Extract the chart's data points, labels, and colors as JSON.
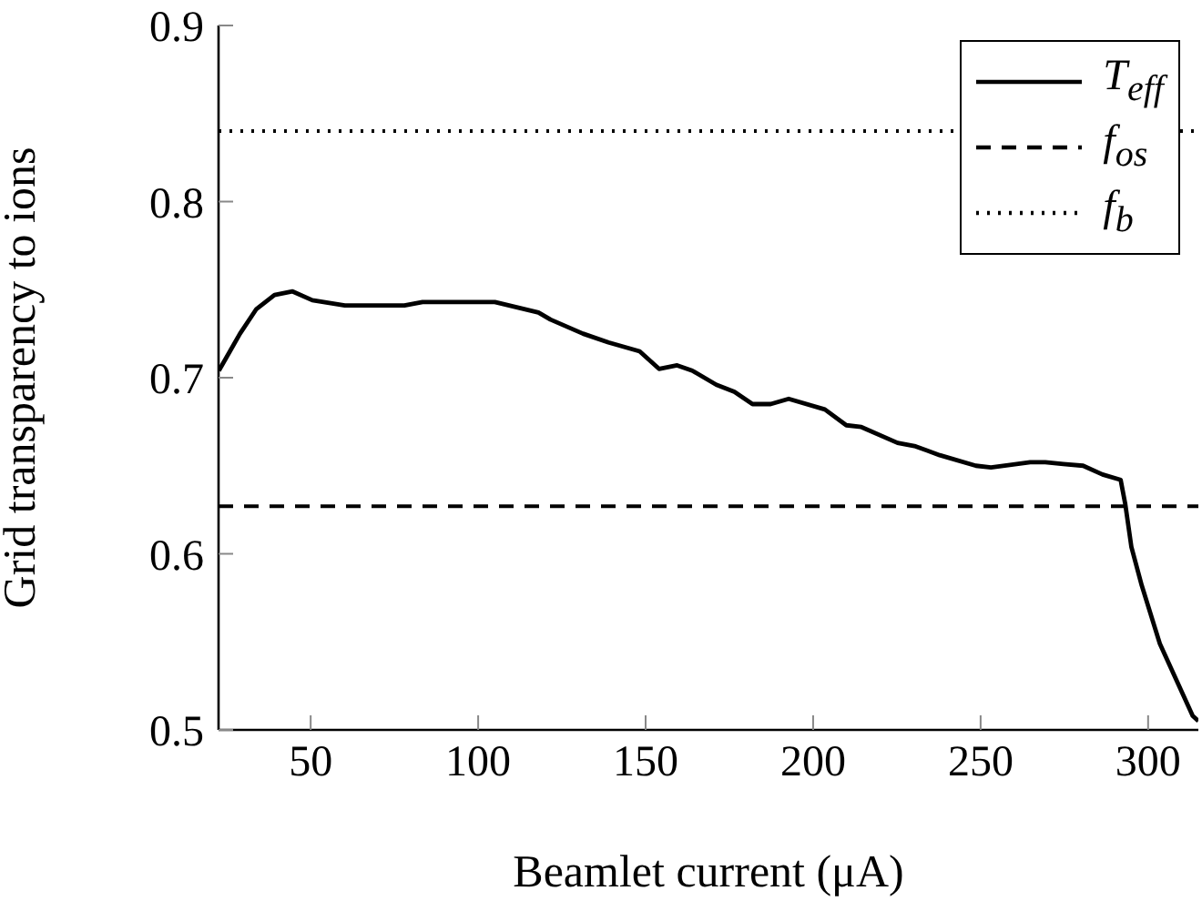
{
  "chart_data": {
    "type": "line",
    "xlabel": "Beamlet current (μA)",
    "ylabel": "Grid transparency to ions",
    "xlim": [
      22.5,
      315
    ],
    "xticks": [
      50,
      100,
      150,
      200,
      250,
      300
    ],
    "ylim": [
      0.5,
      0.9
    ],
    "yticks": [
      0.5,
      0.6,
      0.7,
      0.8,
      0.9
    ],
    "grid": false,
    "legend": "top right",
    "marker": "none",
    "series": [
      {
        "name": "T$_{eff}$",
        "color": "#000000",
        "line_style": "solid",
        "x": [
          22.6,
          28.9,
          33.8,
          39.2,
          44.6,
          50.5,
          60.2,
          78,
          83.4,
          105,
          118,
          121.6,
          131.3,
          138.9,
          148.2,
          154,
          159.4,
          163.9,
          171.1,
          176.5,
          181.9,
          187.3,
          192.7,
          203.5,
          209.9,
          214.4,
          225.2,
          230.6,
          237.8,
          248.6,
          253.1,
          264.8,
          269.3,
          274.7,
          280.6,
          286.4,
          291.8,
          293.2,
          295,
          298.1,
          303.5,
          313.3,
          315
        ],
        "values": [
          0.704,
          0.725,
          0.739,
          0.747,
          0.749,
          0.744,
          0.741,
          0.741,
          0.743,
          0.743,
          0.737,
          0.733,
          0.725,
          0.72,
          0.715,
          0.705,
          0.707,
          0.704,
          0.696,
          0.692,
          0.685,
          0.685,
          0.688,
          0.682,
          0.673,
          0.672,
          0.663,
          0.661,
          0.656,
          0.65,
          0.649,
          0.652,
          0.652,
          0.651,
          0.65,
          0.645,
          0.642,
          0.628,
          0.604,
          0.582,
          0.549,
          0.508,
          0.505
        ]
      }
    ],
    "ref_lines": [
      {
        "axis": "y",
        "value": 0.627,
        "label": "f$_{os}$",
        "color": "#000000",
        "line_style": "dashed"
      },
      {
        "axis": "y",
        "value": 0.84,
        "label": "f$_{b}$",
        "color": "#000000",
        "line_style": "dotted"
      }
    ]
  }
}
